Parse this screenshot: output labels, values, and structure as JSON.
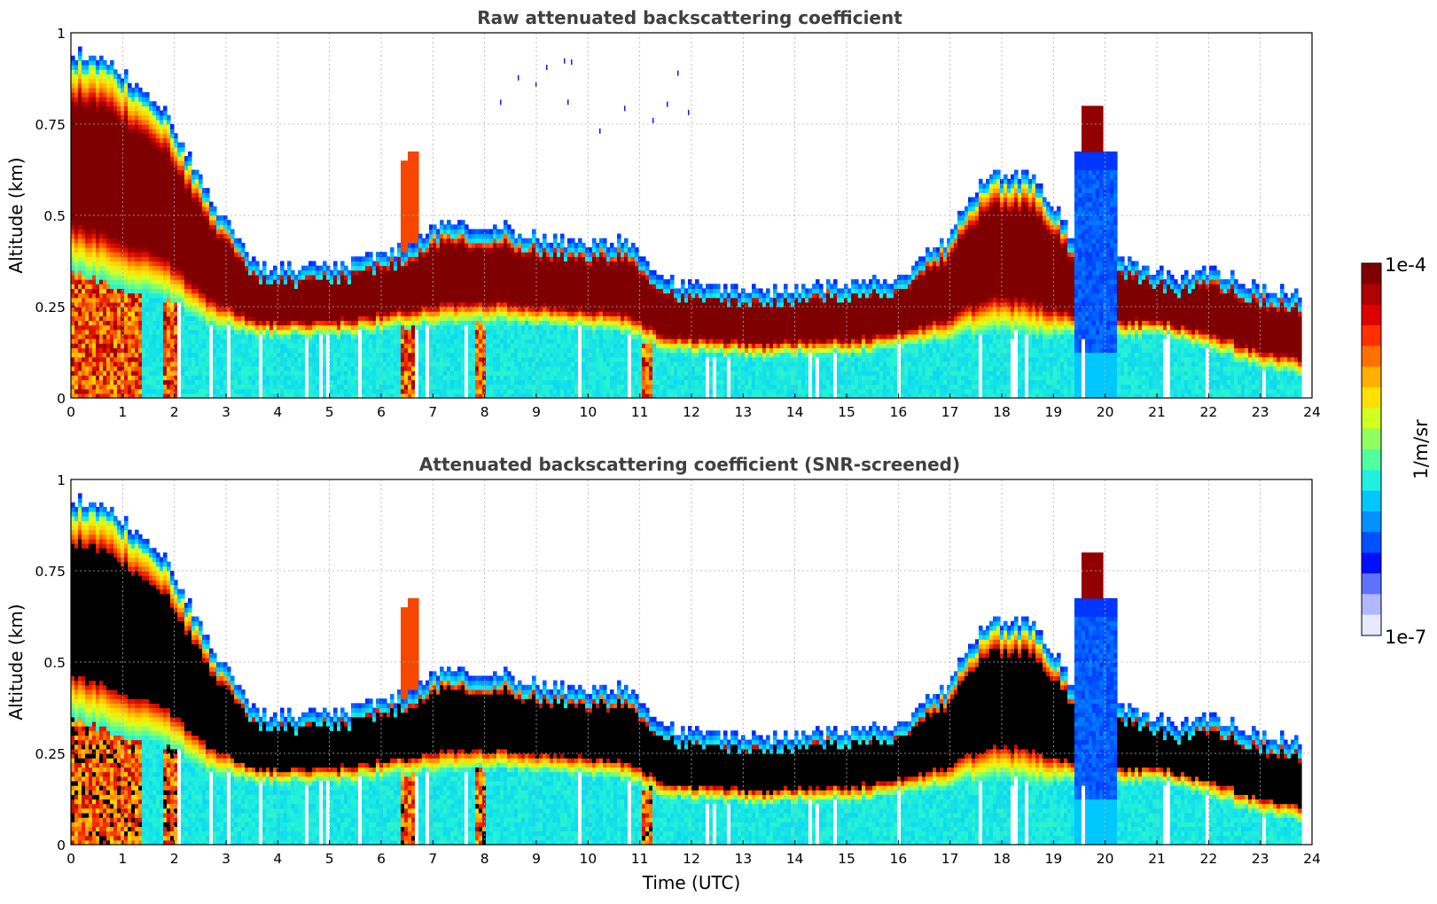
{
  "chart_data": [
    {
      "type": "heatmap",
      "title": "Raw attenuated backscattering coefficient",
      "xlabel": "",
      "ylabel": "Altitude (km)",
      "xlim": [
        0,
        24
      ],
      "ylim": [
        0,
        1
      ],
      "x_ticks": [
        "0",
        "1",
        "2",
        "3",
        "4",
        "5",
        "6",
        "7",
        "8",
        "9",
        "10",
        "11",
        "12",
        "13",
        "14",
        "15",
        "16",
        "17",
        "18",
        "19",
        "20",
        "21",
        "22",
        "23",
        "24"
      ],
      "y_ticks": [
        "0",
        "0.25",
        "0.5",
        "0.75",
        "1"
      ],
      "grid": true,
      "cloud_top_km": [
        0.95,
        0.9,
        0.8,
        0.55,
        0.36,
        0.36,
        0.37,
        0.4,
        0.47,
        0.48,
        0.45,
        0.42,
        0.43,
        0.32,
        0.3,
        0.29,
        0.3,
        0.32,
        0.33,
        0.43,
        0.62,
        0.6,
        0.4,
        0.37,
        0.33,
        0.35,
        0.3,
        0.28
      ],
      "cloud_base_km": [
        0.35,
        0.3,
        0.28,
        0.2,
        0.17,
        0.17,
        0.17,
        0.19,
        0.2,
        0.21,
        0.2,
        0.19,
        0.18,
        0.13,
        0.12,
        0.11,
        0.12,
        0.12,
        0.14,
        0.16,
        0.18,
        0.17,
        0.17,
        0.17,
        0.17,
        0.12,
        0.08,
        0.06
      ]
    },
    {
      "type": "heatmap",
      "title": "Attenuated backscattering coefficient (SNR-screened)",
      "xlabel": "Time (UTC)",
      "ylabel": "Altitude (km)",
      "xlim": [
        0,
        24
      ],
      "ylim": [
        0,
        1
      ],
      "x_ticks": [
        "0",
        "1",
        "2",
        "3",
        "4",
        "5",
        "6",
        "7",
        "8",
        "9",
        "10",
        "11",
        "12",
        "13",
        "14",
        "15",
        "16",
        "17",
        "18",
        "19",
        "20",
        "21",
        "22",
        "23",
        "24"
      ],
      "y_ticks": [
        "0",
        "0.25",
        "0.5",
        "0.75",
        "1"
      ],
      "grid": true
    }
  ],
  "colorbar": {
    "max_label": "1e-4",
    "min_label": "1e-7",
    "unit_label": "1/m/sr",
    "colors": [
      "#7f0000",
      "#b00000",
      "#e00000",
      "#ff3000",
      "#ff7000",
      "#ffb000",
      "#ffe000",
      "#d0ff20",
      "#90ff60",
      "#50ffa0",
      "#20f0e0",
      "#00c8ff",
      "#0090ff",
      "#0050ff",
      "#0010ff",
      "#6070ff",
      "#b0b8ff",
      "#e8e8ff"
    ]
  }
}
